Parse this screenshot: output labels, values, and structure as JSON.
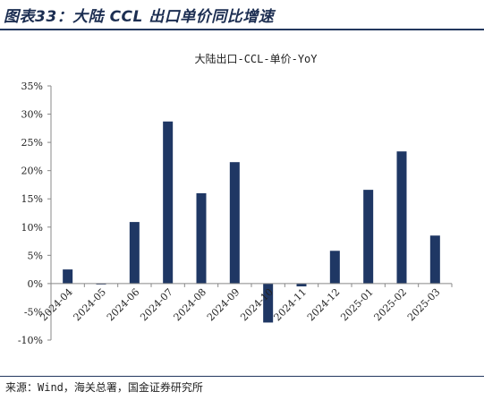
{
  "header": {
    "title": "图表33：大陆 CCL 出口单价同比增速"
  },
  "footer": {
    "source": "来源：Wind，海关总署，国金证券研究所"
  },
  "colors": {
    "bar": "#1f3764",
    "axis": "#888888",
    "header_accent": "#23375e"
  },
  "chart_data": {
    "type": "bar",
    "title": "大陆出口-CCL-单价-YoY",
    "xlabel": "",
    "ylabel": "",
    "categories": [
      "2024-04",
      "2024-05",
      "2024-06",
      "2024-07",
      "2024-08",
      "2024-09",
      "2024-10",
      "2024-11",
      "2024-12",
      "2025-01",
      "2025-02",
      "2025-03"
    ],
    "values": [
      2.5,
      -0.1,
      10.9,
      28.7,
      16.0,
      21.5,
      -6.9,
      -0.5,
      5.8,
      16.6,
      23.4,
      8.5
    ],
    "ylim": [
      -10,
      35
    ],
    "yticks": [
      35,
      30,
      25,
      20,
      15,
      10,
      5,
      0,
      -5,
      -10
    ],
    "ytick_labels": [
      "35%",
      "30%",
      "25%",
      "20%",
      "15%",
      "10%",
      "5%",
      "0%",
      "-5%",
      "-10%"
    ],
    "grid": false,
    "legend": "none"
  }
}
